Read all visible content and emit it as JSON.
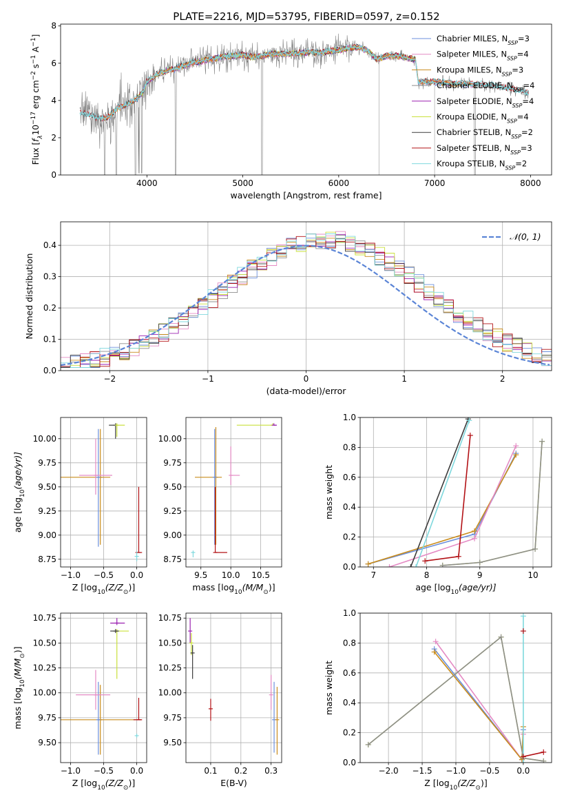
{
  "figure_title": "PLATE=2216, MJD=53795, FIBERID=0597, z=0.152",
  "colors": {
    "Chabrier MILES": "#6b8fdc",
    "Salpeter MILES": "#e48ac4",
    "Kroupa MILES": "#c98c1c",
    "Chabrier ELODIE": "#8d8d8d",
    "Salpeter ELODIE": "#9a1eb0",
    "Kroupa ELODIE": "#c9e03a",
    "Chabrier STELIB": "#3b3b3b",
    "Salpeter STELIB": "#b21014",
    "Kroupa STELIB": "#7ed8dd",
    "data": "#7f7f7f",
    "orange": "#ee7c30",
    "normal": "#5a84d6"
  },
  "chart_data": [
    {
      "id": "spectrum",
      "type": "line",
      "title": "PLATE=2216, MJD=53795, FIBERID=0597, z=0.152",
      "xlabel": "wavelength [Angstrom, rest frame]",
      "ylabel_parts": {
        "pre": "Flux [",
        "f": "f",
        "lam": "λ",
        "mid": "10",
        "e1": "−17",
        "unit": " erg cm",
        "e2": "−2",
        "s": " s",
        "e3": "−1",
        "a": " A",
        "e4": "−1",
        "post": "]"
      },
      "xlim": [
        3100,
        8220
      ],
      "ylim": [
        0,
        8.1
      ],
      "xticks": [
        4000,
        5000,
        6000,
        7000,
        8000
      ],
      "yticks": [
        0,
        2,
        4,
        6,
        8
      ],
      "grid": false,
      "legend_position": "top-right",
      "legend": [
        {
          "base": "Chabrier MILES, N",
          "sub": "SSP",
          "val": "=3"
        },
        {
          "base": "Salpeter MILES, N",
          "sub": "SSP",
          "val": "=4"
        },
        {
          "base": "Kroupa MILES, N",
          "sub": "SSP",
          "val": "=3"
        },
        {
          "base": "Chabrier ELODIE, N",
          "sub": "SSP",
          "val": "=4"
        },
        {
          "base": "Salpeter ELODIE, N",
          "sub": "SSP",
          "val": "=4"
        },
        {
          "base": "Kroupa ELODIE, N",
          "sub": "SSP",
          "val": "=4"
        },
        {
          "base": "Chabrier STELIB, N",
          "sub": "SSP",
          "val": "=2"
        },
        {
          "base": "Salpeter STELIB, N",
          "sub": "SSP",
          "val": "=3"
        },
        {
          "base": "Kroupa STELIB, N",
          "sub": "SSP",
          "val": "=2"
        }
      ],
      "continuum": [
        [
          3300,
          3.35
        ],
        [
          3400,
          3.2
        ],
        [
          3500,
          3.0
        ],
        [
          3600,
          3.1
        ],
        [
          3700,
          3.6
        ],
        [
          3800,
          3.8
        ],
        [
          3900,
          4.1
        ],
        [
          3950,
          4.4
        ],
        [
          4000,
          5.0
        ],
        [
          4100,
          5.4
        ],
        [
          4200,
          5.6
        ],
        [
          4300,
          5.7
        ],
        [
          4400,
          5.9
        ],
        [
          4500,
          6.05
        ],
        [
          4600,
          6.15
        ],
        [
          4700,
          6.25
        ],
        [
          4800,
          6.35
        ],
        [
          4900,
          6.4
        ],
        [
          5000,
          6.45
        ],
        [
          5100,
          6.3
        ],
        [
          5200,
          6.4
        ],
        [
          5300,
          6.5
        ],
        [
          5400,
          6.5
        ],
        [
          5500,
          6.5
        ],
        [
          5600,
          6.55
        ],
        [
          5700,
          6.6
        ],
        [
          5800,
          6.55
        ],
        [
          5900,
          6.65
        ],
        [
          6000,
          6.7
        ],
        [
          6100,
          6.8
        ],
        [
          6200,
          6.85
        ],
        [
          6300,
          6.7
        ],
        [
          6400,
          6.2
        ],
        [
          6500,
          6.4
        ],
        [
          6600,
          6.4
        ],
        [
          6700,
          6.3
        ],
        [
          6800,
          6.2
        ],
        [
          6830,
          5.0
        ],
        [
          6900,
          5.0
        ],
        [
          7000,
          5.0
        ],
        [
          7100,
          4.95
        ],
        [
          7200,
          4.9
        ],
        [
          7300,
          4.9
        ],
        [
          7400,
          4.85
        ],
        [
          7500,
          4.85
        ],
        [
          7600,
          4.8
        ],
        [
          7700,
          4.7
        ],
        [
          7800,
          4.6
        ],
        [
          7900,
          4.5
        ],
        [
          7950,
          4.4
        ]
      ],
      "drops": [
        3560,
        3680,
        3880,
        4300,
        5200,
        7420
      ]
    },
    {
      "id": "residuals",
      "type": "line",
      "xlabel": "(data-model)/error",
      "ylabel": "Normed distribution",
      "xlim": [
        -2.5,
        2.5
      ],
      "ylim": [
        0,
        0.475
      ],
      "xticks": [
        -2,
        -1,
        0,
        1,
        2
      ],
      "xtick_labels": [
        "−2",
        "−1",
        "0",
        "1",
        "2"
      ],
      "yticks": [
        0,
        0.1,
        0.2,
        0.3,
        0.4
      ],
      "ytick_labels": [
        "0.0",
        "0.1",
        "0.2",
        "0.3",
        "0.4"
      ],
      "grid": true,
      "legend_position": "top-right",
      "legend": [
        {
          "label": "𝒩(0, 1)"
        }
      ],
      "normal_mu": 0,
      "normal_sigma": 1,
      "hist_bin_width": 0.1
    },
    {
      "id": "age_vs_z",
      "type": "scatter",
      "xlabel": {
        "pre": "Z [log",
        "sub": "10",
        "mid": "(Z/Z",
        "sun": "⊙",
        "post": ")]"
      },
      "ylabel": {
        "pre": "age  [log",
        "sub": "10",
        "post": "(age/yr)]"
      },
      "xlim": [
        -1.15,
        0.15
      ],
      "ylim": [
        8.67,
        10.22
      ],
      "xticks": [
        -1.0,
        -0.5,
        0.0
      ],
      "xtick_labels": [
        "−1.0",
        "−0.5",
        "0.0"
      ],
      "yticks": [
        8.75,
        9.0,
        9.25,
        9.5,
        9.75,
        10.0
      ],
      "ytick_labels": [
        "8.75",
        "9.00",
        "9.25",
        "9.50",
        "9.75",
        "10.00"
      ],
      "grid": true,
      "points": [
        {
          "s": "Kroupa MILES",
          "x": -0.55,
          "y": 9.6,
          "xl": 0.8,
          "xh": 0.15,
          "yl": 0.7,
          "yh": 0.5
        },
        {
          "s": "Chabrier MILES",
          "x": -0.58,
          "y": 9.6,
          "xl": 0.0,
          "xh": 0.0,
          "yl": 0.72,
          "yh": 0.5
        },
        {
          "s": "Salpeter MILES",
          "x": -0.62,
          "y": 9.62,
          "xl": 0.25,
          "xh": 0.25,
          "yl": 0.2,
          "yh": 0.38
        },
        {
          "s": "Salpeter STELIB",
          "x": 0.03,
          "y": 8.82,
          "xl": 0.05,
          "xh": 0.05,
          "yl": 0.0,
          "yh": 0.68
        },
        {
          "s": "Chabrier STELIB",
          "x": -0.32,
          "y": 10.14,
          "xl": 0.1,
          "xh": 0.0,
          "yl": 0.14,
          "yh": 0.02
        },
        {
          "s": "Kroupa ELODIE",
          "x": -0.3,
          "y": 10.14,
          "xl": 0.0,
          "xh": 0.12,
          "yl": 0.12,
          "yh": 0.02
        },
        {
          "s": "Kroupa STELIB",
          "x": 0.0,
          "y": 8.78,
          "xl": 0.0,
          "xh": 0.0,
          "yl": 0.05,
          "yh": 0.05
        }
      ]
    },
    {
      "id": "age_vs_mass",
      "type": "scatter",
      "xlabel": {
        "pre": "mass [log",
        "sub": "10",
        "mid": "(M/M",
        "sun": "⊙",
        "post": ")]"
      },
      "xlim": [
        9.25,
        10.85
      ],
      "ylim": [
        8.67,
        10.22
      ],
      "xticks": [
        9.5,
        10.0,
        10.5
      ],
      "xtick_labels": [
        "9.5",
        "10.0",
        "10.5"
      ],
      "yticks": [
        8.75,
        9.0,
        9.25,
        9.5,
        9.75,
        10.0
      ],
      "ytick_labels": [
        "8.75",
        "9.00",
        "9.25",
        "9.50",
        "9.75",
        "10.00"
      ],
      "grid": true,
      "points": [
        {
          "s": "Kroupa MILES",
          "x": 9.75,
          "y": 9.6,
          "xl": 0.35,
          "xh": 0.1,
          "yl": 0.7,
          "yh": 0.52
        },
        {
          "s": "Chabrier MILES",
          "x": 9.73,
          "y": 9.6,
          "xl": 0.0,
          "xh": 0.0,
          "yl": 0.7,
          "yh": 0.5
        },
        {
          "s": "Salpeter MILES",
          "x": 10.0,
          "y": 9.62,
          "xl": 0.0,
          "xh": 0.15,
          "yl": 0.1,
          "yh": 0.3
        },
        {
          "s": "Salpeter STELIB",
          "x": 9.74,
          "y": 8.82,
          "xl": 0.0,
          "xh": 0.2,
          "yl": 0.0,
          "yh": 0.68
        },
        {
          "s": "Kroupa ELODIE",
          "x": 10.7,
          "y": 10.14,
          "xl": 0.6,
          "xh": 0.0,
          "yl": 0.0,
          "yh": 0.02
        },
        {
          "s": "Salpeter ELODIE",
          "x": 10.72,
          "y": 10.14,
          "xl": 0.0,
          "xh": 0.05,
          "yl": 0.0,
          "yh": 0.02
        },
        {
          "s": "Kroupa STELIB",
          "x": 9.37,
          "y": 8.82,
          "xl": 0.0,
          "xh": 0.0,
          "yl": 0.05,
          "yh": 0.02
        }
      ]
    },
    {
      "id": "weight_vs_age",
      "type": "line",
      "xlabel": {
        "pre": "age  [log",
        "sub": "10",
        "post": "(age/yr)]"
      },
      "ylabel": "mass weight",
      "xlim": [
        6.75,
        10.35
      ],
      "ylim": [
        0,
        1.0
      ],
      "xticks": [
        7,
        8,
        9,
        10
      ],
      "yticks": [
        0,
        0.2,
        0.4,
        0.6,
        0.8,
        1.0
      ],
      "ytick_labels": [
        "0.0",
        "0.2",
        "0.4",
        "0.6",
        "0.8",
        "1.0"
      ],
      "grid": true,
      "series": [
        {
          "s": "Chabrier MILES",
          "pts": [
            [
              6.9,
              0.02
            ],
            [
              8.9,
              0.22
            ],
            [
              9.68,
              0.76
            ]
          ]
        },
        {
          "s": "Kroupa MILES",
          "pts": [
            [
              6.9,
              0.02
            ],
            [
              8.9,
              0.24
            ],
            [
              9.68,
              0.75
            ]
          ]
        },
        {
          "s": "Salpeter MILES",
          "pts": [
            [
              7.3,
              0.0
            ],
            [
              8.9,
              0.19
            ],
            [
              9.68,
              0.81
            ]
          ]
        },
        {
          "s": "Kroupa ELODIE",
          "pts": [
            [
              8.3,
              0.01
            ],
            [
              9.0,
              0.03
            ],
            [
              10.04,
              0.12
            ],
            [
              10.17,
              0.84
            ]
          ]
        },
        {
          "s": "Chabrier ELODIE",
          "pts": [
            [
              8.3,
              0.01
            ],
            [
              9.0,
              0.03
            ],
            [
              10.04,
              0.12
            ],
            [
              10.17,
              0.84
            ]
          ]
        },
        {
          "s": "Chabrier STELIB",
          "pts": [
            [
              7.7,
              0.0
            ],
            [
              8.78,
              0.99
            ]
          ]
        },
        {
          "s": "Kroupa STELIB",
          "pts": [
            [
              7.8,
              0.0
            ],
            [
              8.8,
              0.98
            ]
          ]
        },
        {
          "s": "Salpeter STELIB",
          "pts": [
            [
              7.97,
              0.04
            ],
            [
              8.6,
              0.07
            ],
            [
              8.82,
              0.88
            ]
          ]
        }
      ]
    },
    {
      "id": "mass_vs_z",
      "type": "scatter",
      "xlabel": {
        "pre": "Z [log",
        "sub": "10",
        "mid": "(Z/Z",
        "sun": "⊙",
        "post": ")]"
      },
      "ylabel": {
        "pre": "mass [log",
        "sub": "10",
        "mid": "(M/M",
        "sun": "⊙",
        "post": ")]"
      },
      "xlim": [
        -1.15,
        0.15
      ],
      "ylim": [
        9.3,
        10.8
      ],
      "xticks": [
        -1.0,
        -0.5,
        0.0
      ],
      "xtick_labels": [
        "−1.0",
        "−0.5",
        "0.0"
      ],
      "yticks": [
        9.5,
        9.75,
        10.0,
        10.25,
        10.5,
        10.75
      ],
      "ytick_labels": [
        "9.50",
        "9.75",
        "10.00",
        "10.25",
        "10.50",
        "10.75"
      ],
      "grid": true,
      "points": [
        {
          "s": "Kroupa MILES",
          "x": -0.55,
          "y": 9.73,
          "xl": 0.6,
          "xh": 0.62,
          "yl": 0.35,
          "yh": 0.35
        },
        {
          "s": "Chabrier MILES",
          "x": -0.58,
          "y": 9.73,
          "xl": 0.0,
          "xh": 0.0,
          "yl": 0.35,
          "yh": 0.38
        },
        {
          "s": "Salpeter MILES",
          "x": -0.62,
          "y": 9.98,
          "xl": 0.3,
          "xh": 0.22,
          "yl": 0.15,
          "yh": 0.25
        },
        {
          "s": "Salpeter ELODIE",
          "x": -0.3,
          "y": 10.7,
          "xl": 0.1,
          "xh": 0.12,
          "yl": 0.02,
          "yh": 0.05
        },
        {
          "s": "Kroupa ELODIE",
          "x": -0.3,
          "y": 10.62,
          "xl": 0.05,
          "xh": 0.18,
          "yl": 0.48,
          "yh": 0.02
        },
        {
          "s": "Chabrier STELIB",
          "x": -0.32,
          "y": 10.62,
          "xl": 0.08,
          "xh": 0.05,
          "yl": 0.02,
          "yh": 0.02
        },
        {
          "s": "Salpeter STELIB",
          "x": 0.03,
          "y": 9.73,
          "xl": 0.08,
          "xh": 0.05,
          "yl": 0.0,
          "yh": 0.22
        },
        {
          "s": "Kroupa STELIB",
          "x": 0.0,
          "y": 9.57,
          "xl": 0.0,
          "xh": 0.0,
          "yl": 0.02,
          "yh": 0.02
        }
      ]
    },
    {
      "id": "mass_vs_ebv",
      "type": "scatter",
      "xlabel": "E(B-V)",
      "xlim": [
        0.018,
        0.335
      ],
      "ylim": [
        9.3,
        10.8
      ],
      "xticks": [
        0.1,
        0.2,
        0.3
      ],
      "xtick_labels": [
        "0.1",
        "0.2",
        "0.3"
      ],
      "yticks": [
        9.5,
        9.75,
        10.0,
        10.25,
        10.5,
        10.75
      ],
      "ytick_labels": [
        "9.50",
        "9.75",
        "10.00",
        "10.25",
        "10.50",
        "10.75"
      ],
      "grid": true,
      "points": [
        {
          "s": "Salpeter MILES",
          "x": 0.3,
          "y": 9.98,
          "xl": 0,
          "xh": 0,
          "yl": 0.15,
          "yh": 0.2
        },
        {
          "s": "Chabrier MILES",
          "x": 0.31,
          "y": 9.73,
          "xl": 0,
          "xh": 0,
          "yl": 0.33,
          "yh": 0.38
        },
        {
          "s": "Kroupa MILES",
          "x": 0.32,
          "y": 9.73,
          "xl": 0,
          "xh": 0,
          "yl": 0.35,
          "yh": 0.33
        },
        {
          "s": "Salpeter ELODIE",
          "x": 0.032,
          "y": 10.62,
          "xl": 0,
          "xh": 0,
          "yl": 0.12,
          "yh": 0.13
        },
        {
          "s": "Kroupa ELODIE",
          "x": 0.036,
          "y": 10.5,
          "xl": 0,
          "xh": 0,
          "yl": 0.12,
          "yh": 0.1
        },
        {
          "s": "Chabrier STELIB",
          "x": 0.04,
          "y": 10.4,
          "xl": 0,
          "xh": 0,
          "yl": 0.26,
          "yh": 0.08
        },
        {
          "s": "Salpeter STELIB",
          "x": 0.1,
          "y": 9.84,
          "xl": 0,
          "xh": 0,
          "yl": 0.12,
          "yh": 0.1
        }
      ]
    },
    {
      "id": "weight_vs_z",
      "type": "line",
      "xlabel": {
        "pre": "Z [log",
        "sub": "10",
        "mid": "(Z/Z",
        "sun": "⊙",
        "post": ")]"
      },
      "ylabel": "mass weight",
      "xlim": [
        -2.42,
        0.42
      ],
      "ylim": [
        0,
        1.0
      ],
      "xticks": [
        -2.0,
        -1.5,
        -1.0,
        -0.5,
        0.0
      ],
      "xtick_labels": [
        "−2.0",
        "−1.5",
        "−1.0",
        "−0.5",
        "0.0"
      ],
      "yticks": [
        0,
        0.2,
        0.4,
        0.6,
        0.8,
        1.0
      ],
      "ytick_labels": [
        "0.0",
        "0.2",
        "0.4",
        "0.6",
        "0.8",
        "1.0"
      ],
      "grid": true,
      "series": [
        {
          "s": "Chabrier MILES",
          "pts": [
            [
              -1.32,
              0.76
            ],
            [
              -0.02,
              0.02
            ],
            [
              0.0,
              0.22
            ]
          ]
        },
        {
          "s": "Salpeter MILES",
          "pts": [
            [
              -1.3,
              0.81
            ],
            [
              -0.02,
              0.02
            ],
            [
              0.0,
              0.19
            ]
          ]
        },
        {
          "s": "Kroupa MILES",
          "pts": [
            [
              -1.32,
              0.74
            ],
            [
              -0.02,
              0.02
            ],
            [
              0.0,
              0.24
            ]
          ]
        },
        {
          "s": "Kroupa ELODIE",
          "pts": [
            [
              -2.3,
              0.12
            ],
            [
              -0.33,
              0.84
            ],
            [
              0.0,
              0.03
            ],
            [
              0.3,
              0.01
            ]
          ]
        },
        {
          "s": "Chabrier ELODIE",
          "pts": [
            [
              -2.3,
              0.12
            ],
            [
              -0.33,
              0.84
            ],
            [
              0.0,
              0.03
            ],
            [
              0.3,
              0.01
            ]
          ]
        },
        {
          "s": "Kroupa STELIB",
          "pts": [
            [
              0.0,
              0.0
            ],
            [
              0.0,
              0.98
            ]
          ]
        },
        {
          "s": "Salpeter STELIB",
          "pts": [
            [
              0.0,
              0.04
            ],
            [
              0.3,
              0.07
            ]
          ]
        },
        {
          "s": "Salpeter STELIB",
          "pts": [
            [
              0.0,
              0.88
            ]
          ]
        }
      ]
    }
  ]
}
